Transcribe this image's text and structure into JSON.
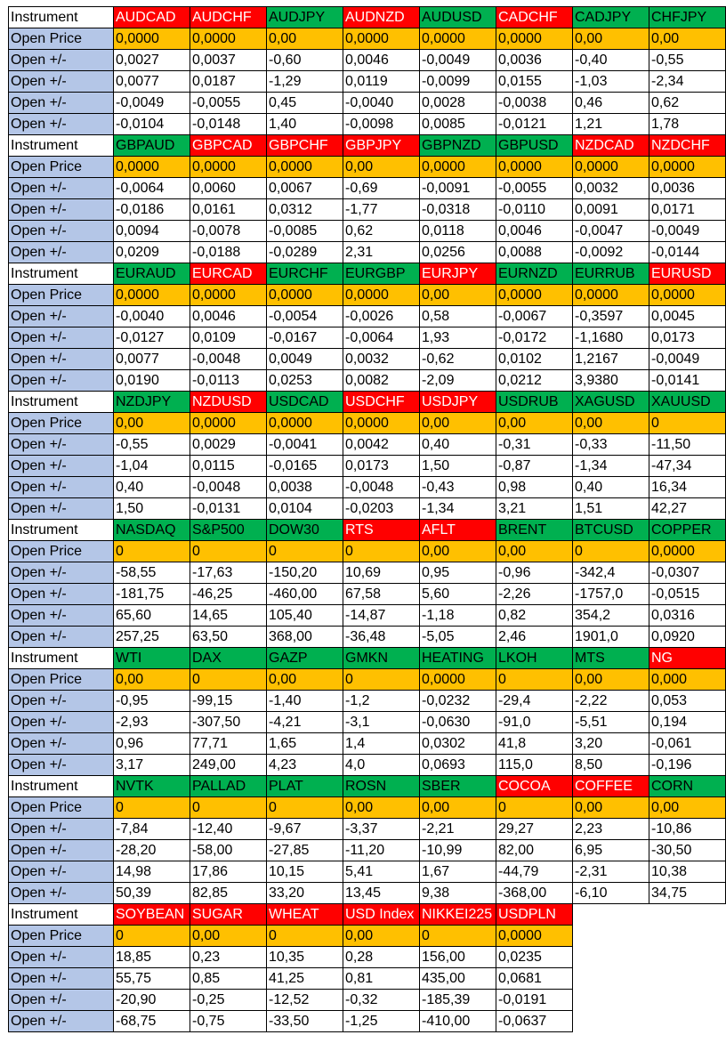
{
  "labels": {
    "instrument": "Instrument",
    "open_price": "Open Price",
    "open_delta": "Open +/-"
  },
  "colors": {
    "green": "#00b050",
    "red": "#ff0000",
    "price": "#ffc000",
    "label_blue": "#b4c6e7"
  },
  "blocks": [
    {
      "instruments": [
        {
          "name": "AUDCAD",
          "color": "red"
        },
        {
          "name": "AUDCHF",
          "color": "red"
        },
        {
          "name": "AUDJPY",
          "color": "green"
        },
        {
          "name": "AUDNZD",
          "color": "red"
        },
        {
          "name": "AUDUSD",
          "color": "green"
        },
        {
          "name": "CADCHF",
          "color": "red"
        },
        {
          "name": "CADJPY",
          "color": "green"
        },
        {
          "name": "CHFJPY",
          "color": "green"
        }
      ],
      "open_price": [
        "0,0000",
        "0,0000",
        "0,00",
        "0,0000",
        "0,0000",
        "0,0000",
        "0,00",
        "0,00"
      ],
      "deltas": [
        [
          "0,0027",
          "0,0037",
          "-0,60",
          "0,0046",
          "-0,0049",
          "0,0036",
          "-0,40",
          "-0,55"
        ],
        [
          "0,0077",
          "0,0187",
          "-1,29",
          "0,0119",
          "-0,0099",
          "0,0155",
          "-1,03",
          "-2,34"
        ],
        [
          "-0,0049",
          "-0,0055",
          "0,45",
          "-0,0040",
          "0,0028",
          "-0,0038",
          "0,46",
          "0,62"
        ],
        [
          "-0,0104",
          "-0,0148",
          "1,40",
          "-0,0098",
          "0,0085",
          "-0,0121",
          "1,21",
          "1,78"
        ]
      ]
    },
    {
      "instruments": [
        {
          "name": "GBPAUD",
          "color": "green"
        },
        {
          "name": "GBPCAD",
          "color": "red"
        },
        {
          "name": "GBPCHF",
          "color": "red"
        },
        {
          "name": "GBPJPY",
          "color": "red"
        },
        {
          "name": "GBPNZD",
          "color": "green"
        },
        {
          "name": "GBPUSD",
          "color": "green"
        },
        {
          "name": "NZDCAD",
          "color": "red"
        },
        {
          "name": "NZDCHF",
          "color": "red"
        }
      ],
      "open_price": [
        "0,0000",
        "0,0000",
        "0,0000",
        "0,00",
        "0,0000",
        "0,0000",
        "0,0000",
        "0,0000"
      ],
      "deltas": [
        [
          "-0,0064",
          "0,0060",
          "0,0067",
          "-0,69",
          "-0,0091",
          "-0,0055",
          "0,0032",
          "0,0036"
        ],
        [
          "-0,0186",
          "0,0161",
          "0,0312",
          "-1,77",
          "-0,0318",
          "-0,0110",
          "0,0091",
          "0,0171"
        ],
        [
          "0,0094",
          "-0,0078",
          "-0,0085",
          "0,62",
          "0,0118",
          "0,0046",
          "-0,0047",
          "-0,0049"
        ],
        [
          "0,0209",
          "-0,0188",
          "-0,0289",
          "2,31",
          "0,0256",
          "0,0088",
          "-0,0092",
          "-0,0144"
        ]
      ]
    },
    {
      "instruments": [
        {
          "name": "EURAUD",
          "color": "green"
        },
        {
          "name": "EURCAD",
          "color": "red"
        },
        {
          "name": "EURCHF",
          "color": "green"
        },
        {
          "name": "EURGBP",
          "color": "green"
        },
        {
          "name": "EURJPY",
          "color": "red"
        },
        {
          "name": "EURNZD",
          "color": "green"
        },
        {
          "name": "EURRUB",
          "color": "green"
        },
        {
          "name": "EURUSD",
          "color": "red"
        }
      ],
      "open_price": [
        "0,0000",
        "0,0000",
        "0,0000",
        "0,0000",
        "0,00",
        "0,0000",
        "0,0000",
        "0,0000"
      ],
      "deltas": [
        [
          "-0,0040",
          "0,0046",
          "-0,0054",
          "-0,0026",
          "0,58",
          "-0,0067",
          "-0,3597",
          "0,0045"
        ],
        [
          "-0,0127",
          "0,0109",
          "-0,0167",
          "-0,0064",
          "1,93",
          "-0,0172",
          "-1,1680",
          "0,0173"
        ],
        [
          "0,0077",
          "-0,0048",
          "0,0049",
          "0,0032",
          "-0,62",
          "0,0102",
          "1,2167",
          "-0,0049"
        ],
        [
          "0,0190",
          "-0,0113",
          "0,0253",
          "0,0082",
          "-2,09",
          "0,0212",
          "3,9380",
          "-0,0141"
        ]
      ]
    },
    {
      "instruments": [
        {
          "name": "NZDJPY",
          "color": "green"
        },
        {
          "name": "NZDUSD",
          "color": "red"
        },
        {
          "name": "USDCAD",
          "color": "green"
        },
        {
          "name": "USDCHF",
          "color": "red"
        },
        {
          "name": "USDJPY",
          "color": "red"
        },
        {
          "name": "USDRUB",
          "color": "green"
        },
        {
          "name": "XAGUSD",
          "color": "green"
        },
        {
          "name": "XAUUSD",
          "color": "green"
        }
      ],
      "open_price": [
        "0,00",
        "0,0000",
        "0,0000",
        "0,0000",
        "0,00",
        "0,00",
        "0,00",
        "0"
      ],
      "deltas": [
        [
          "-0,55",
          "0,0029",
          "-0,0041",
          "0,0042",
          "0,40",
          "-0,31",
          "-0,33",
          "-11,50"
        ],
        [
          "-1,04",
          "0,0115",
          "-0,0165",
          "0,0173",
          "1,50",
          "-0,87",
          "-1,34",
          "-47,34"
        ],
        [
          "0,40",
          "-0,0048",
          "0,0038",
          "-0,0048",
          "-0,43",
          "0,98",
          "0,40",
          "16,34"
        ],
        [
          "1,50",
          "-0,0131",
          "0,0104",
          "-0,0203",
          "-1,34",
          "3,21",
          "1,51",
          "42,27"
        ]
      ]
    },
    {
      "instruments": [
        {
          "name": "NASDAQ",
          "color": "green"
        },
        {
          "name": "S&P500",
          "color": "green"
        },
        {
          "name": "DOW30",
          "color": "green"
        },
        {
          "name": "RTS",
          "color": "red"
        },
        {
          "name": "AFLT",
          "color": "red"
        },
        {
          "name": "BRENT",
          "color": "green"
        },
        {
          "name": "BTCUSD",
          "color": "green"
        },
        {
          "name": "COPPER",
          "color": "green"
        }
      ],
      "open_price": [
        "0",
        "0",
        "0",
        "0",
        "0,00",
        "0,00",
        "0",
        "0,0000"
      ],
      "deltas": [
        [
          "-58,55",
          "-17,63",
          "-150,20",
          "10,69",
          "0,95",
          "-0,96",
          "-342,4",
          "-0,0307"
        ],
        [
          "-181,75",
          "-46,25",
          "-460,00",
          "67,58",
          "5,60",
          "-2,26",
          "-1757,0",
          "-0,0515"
        ],
        [
          "65,60",
          "14,65",
          "105,40",
          "-14,87",
          "-1,18",
          "0,82",
          "354,2",
          "0,0316"
        ],
        [
          "257,25",
          "63,50",
          "368,00",
          "-36,48",
          "-5,05",
          "2,46",
          "1901,0",
          "0,0920"
        ]
      ]
    },
    {
      "instruments": [
        {
          "name": "WTI",
          "color": "green"
        },
        {
          "name": "DAX",
          "color": "green"
        },
        {
          "name": "GAZP",
          "color": "green"
        },
        {
          "name": "GMKN",
          "color": "green"
        },
        {
          "name": "HEATING",
          "color": "green"
        },
        {
          "name": "LKOH",
          "color": "green"
        },
        {
          "name": "MTS",
          "color": "green"
        },
        {
          "name": "NG",
          "color": "red"
        }
      ],
      "open_price": [
        "0,00",
        "0",
        "0,00",
        "0",
        "0,0000",
        "0",
        "0,00",
        "0,000"
      ],
      "deltas": [
        [
          "-0,95",
          "-99,15",
          "-1,40",
          "-1,2",
          "-0,0232",
          "-29,4",
          "-2,22",
          "0,053"
        ],
        [
          "-2,93",
          "-307,50",
          "-4,21",
          "-3,1",
          "-0,0630",
          "-91,0",
          "-5,51",
          "0,194"
        ],
        [
          "0,96",
          "77,71",
          "1,65",
          "1,4",
          "0,0302",
          "41,8",
          "3,20",
          "-0,061"
        ],
        [
          "3,17",
          "249,00",
          "4,23",
          "4,0",
          "0,0693",
          "115,0",
          "8,50",
          "-0,196"
        ]
      ]
    },
    {
      "instruments": [
        {
          "name": "NVTK",
          "color": "green"
        },
        {
          "name": "PALLAD",
          "color": "green"
        },
        {
          "name": "PLAT",
          "color": "green"
        },
        {
          "name": "ROSN",
          "color": "green"
        },
        {
          "name": "SBER",
          "color": "green"
        },
        {
          "name": "COCOA",
          "color": "red"
        },
        {
          "name": "COFFEE",
          "color": "red"
        },
        {
          "name": "CORN",
          "color": "green"
        }
      ],
      "open_price": [
        "0",
        "0",
        "0",
        "0,00",
        "0,00",
        "0",
        "0,00",
        "0,00"
      ],
      "deltas": [
        [
          "-7,84",
          "-12,40",
          "-9,67",
          "-3,37",
          "-2,21",
          "29,27",
          "2,23",
          "-10,86"
        ],
        [
          "-28,20",
          "-58,00",
          "-27,85",
          "-11,20",
          "-10,99",
          "82,00",
          "6,95",
          "-30,50"
        ],
        [
          "14,98",
          "17,86",
          "10,15",
          "5,41",
          "1,67",
          "-44,79",
          "-2,31",
          "10,38"
        ],
        [
          "50,39",
          "82,85",
          "33,20",
          "13,45",
          "9,38",
          "-368,00",
          "-6,10",
          "34,75"
        ]
      ]
    },
    {
      "instruments": [
        {
          "name": "SOYBEAN",
          "color": "red"
        },
        {
          "name": "SUGAR",
          "color": "red"
        },
        {
          "name": "WHEAT",
          "color": "red"
        },
        {
          "name": "USD Index",
          "color": "red"
        },
        {
          "name": "NIKKEI225",
          "color": "red"
        },
        {
          "name": "USDPLN",
          "color": "red"
        }
      ],
      "open_price": [
        "0",
        "0,00",
        "0",
        "0,00",
        "0",
        "0,0000"
      ],
      "deltas": [
        [
          "18,85",
          "0,23",
          "10,35",
          "0,28",
          "156,00",
          "0,0235"
        ],
        [
          "55,75",
          "0,85",
          "41,25",
          "0,81",
          "435,00",
          "0,0681"
        ],
        [
          "-20,90",
          "-0,25",
          "-12,52",
          "-0,32",
          "-185,39",
          "-0,0191"
        ],
        [
          "-68,75",
          "-0,75",
          "-33,50",
          "-1,25",
          "-410,00",
          "-0,0637"
        ]
      ]
    }
  ]
}
